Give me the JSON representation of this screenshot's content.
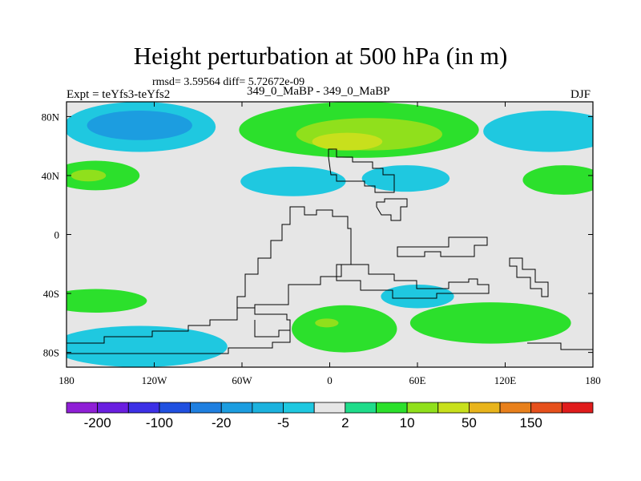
{
  "header": {
    "title": "Height perturbation at 500 hPa (in m)",
    "stats": "rmsd= 3.59564 diff= 5.72672e-09",
    "experiment": "Expt = teYfs3-teYfs2",
    "case": "349_0_MaBP - 349_0_MaBP",
    "season": "DJF"
  },
  "chart_data": {
    "type": "heatmap",
    "title": "Height perturbation at 500 hPa (in m)",
    "xlabel": "",
    "ylabel": "",
    "xlim": [
      -180,
      180
    ],
    "ylim": [
      -90,
      90
    ],
    "x_ticks": [
      {
        "value": -180,
        "label": "180"
      },
      {
        "value": -120,
        "label": "120W"
      },
      {
        "value": -60,
        "label": "60W"
      },
      {
        "value": 0,
        "label": "0"
      },
      {
        "value": 60,
        "label": "60E"
      },
      {
        "value": 120,
        "label": "120E"
      },
      {
        "value": 180,
        "label": "180"
      }
    ],
    "y_ticks": [
      {
        "value": 80,
        "label": "80N"
      },
      {
        "value": 40,
        "label": "40N"
      },
      {
        "value": 0,
        "label": "0"
      },
      {
        "value": -40,
        "label": "40S"
      },
      {
        "value": -80,
        "label": "80S"
      }
    ],
    "levels": [
      -200,
      -150,
      -100,
      -50,
      -20,
      -10,
      -5,
      -2,
      2,
      5,
      10,
      20,
      50,
      100,
      150,
      200
    ],
    "colorbar_labels": [
      {
        "level": -200,
        "label": "-200"
      },
      {
        "level": -100,
        "label": "-100"
      },
      {
        "level": -20,
        "label": "-20"
      },
      {
        "level": -5,
        "label": "-5"
      },
      {
        "level": 2,
        "label": "2"
      },
      {
        "level": 10,
        "label": "10"
      },
      {
        "level": 50,
        "label": "50"
      },
      {
        "level": 150,
        "label": "150"
      }
    ],
    "colors": [
      "#8f1fd6",
      "#6a1fe0",
      "#3d30e6",
      "#2050e0",
      "#1f7fe0",
      "#1c9de0",
      "#1cb2de",
      "#1fc8e0",
      "#e6e6e6",
      "#1fdc8a",
      "#2ce02c",
      "#90e01c",
      "#c8e01c",
      "#e8b41c",
      "#e8801c",
      "#e6501c",
      "#e01c1c"
    ],
    "regions": [
      {
        "name": "n-pacific-ring-low",
        "value": -5,
        "shape": "ellipse",
        "lon": -130,
        "lat": 73,
        "rlon": 52,
        "rlat": 17
      },
      {
        "name": "n-pacific-core-low",
        "value": -20,
        "shape": "ellipse",
        "lon": -130,
        "lat": 74,
        "rlon": 36,
        "rlat": 10
      },
      {
        "name": "n-hemisphere-high",
        "value": 5,
        "shape": "ellipse",
        "lon": 20,
        "lat": 71,
        "rlon": 82,
        "rlat": 19
      },
      {
        "name": "n-hemisphere-high-core",
        "value": 10,
        "shape": "ellipse",
        "lon": 27,
        "lat": 68,
        "rlon": 50,
        "rlat": 11
      },
      {
        "name": "n-hemisphere-high-peak",
        "value": 20,
        "shape": "ellipse",
        "lon": 12,
        "lat": 63,
        "rlon": 24,
        "rlat": 6
      },
      {
        "name": "ne-pacific-low",
        "value": -5,
        "shape": "ellipse",
        "lon": 150,
        "lat": 70,
        "rlon": 45,
        "rlat": 14
      },
      {
        "name": "w-pacific-high",
        "value": 5,
        "shape": "ellipse",
        "lon": -160,
        "lat": 40,
        "rlon": 30,
        "rlat": 10
      },
      {
        "name": "w-pacific-high-core",
        "value": 10,
        "shape": "ellipse",
        "lon": -165,
        "lat": 40,
        "rlon": 12,
        "rlat": 4
      },
      {
        "name": "midlat-low-west",
        "value": -5,
        "shape": "ellipse",
        "lon": -25,
        "lat": 36,
        "rlon": 36,
        "rlat": 10
      },
      {
        "name": "midlat-low-east",
        "value": -5,
        "shape": "ellipse",
        "lon": 52,
        "lat": 38,
        "rlon": 30,
        "rlat": 9
      },
      {
        "name": "e-pacific-high",
        "value": 5,
        "shape": "ellipse",
        "lon": 160,
        "lat": 37,
        "rlon": 28,
        "rlat": 10
      },
      {
        "name": "s-pacific-low",
        "value": -5,
        "shape": "ellipse",
        "lon": -130,
        "lat": -76,
        "rlon": 60,
        "rlat": 14
      },
      {
        "name": "s-atlantic-high",
        "value": 5,
        "shape": "ellipse",
        "lon": 10,
        "lat": -64,
        "rlon": 36,
        "rlat": 16
      },
      {
        "name": "s-atlantic-high-core",
        "value": 10,
        "shape": "ellipse",
        "lon": -2,
        "lat": -60,
        "rlon": 8,
        "rlat": 3
      },
      {
        "name": "s-indian-low",
        "value": -5,
        "shape": "ellipse",
        "lon": 60,
        "lat": -42,
        "rlon": 25,
        "rlat": 8
      },
      {
        "name": "s-ocean-high",
        "value": 5,
        "shape": "ellipse",
        "lon": 110,
        "lat": -60,
        "rlon": 55,
        "rlat": 14
      },
      {
        "name": "sw-pacific-high",
        "value": 5,
        "shape": "ellipse",
        "lon": -160,
        "lat": -45,
        "rlon": 35,
        "rlat": 8
      }
    ]
  }
}
